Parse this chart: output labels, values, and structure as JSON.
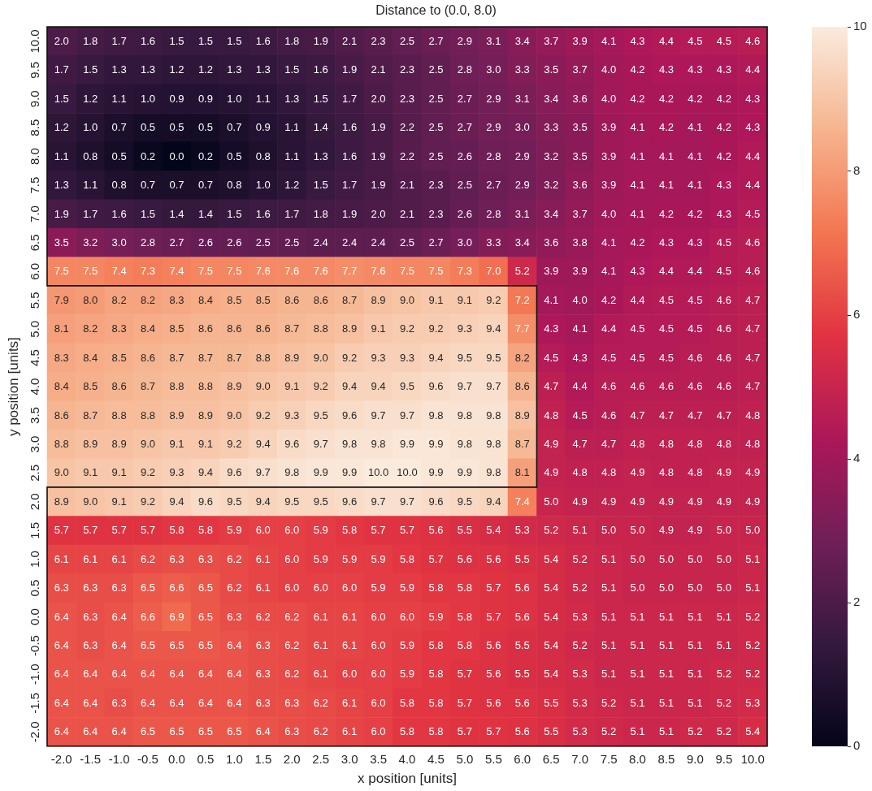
{
  "chart_data": {
    "type": "heatmap",
    "title": "Distance to (0.0, 8.0)",
    "xlabel": "x position [units]",
    "ylabel": "y position [units]",
    "categories": [
      "-2.0",
      "-1.5",
      "-1.0",
      "-0.5",
      "0.0",
      "0.5",
      "1.0",
      "1.5",
      "2.0",
      "2.5",
      "3.0",
      "3.5",
      "4.0",
      "4.5",
      "5.0",
      "5.5",
      "6.0",
      "6.5",
      "7.0",
      "7.5",
      "8.0",
      "8.5",
      "9.0",
      "9.5",
      "10.0"
    ],
    "y_categories": [
      "10.0",
      "9.5",
      "9.0",
      "8.5",
      "8.0",
      "7.5",
      "7.0",
      "6.5",
      "6.0",
      "5.5",
      "5.0",
      "4.5",
      "4.0",
      "3.5",
      "3.0",
      "2.5",
      "2.0",
      "1.5",
      "1.0",
      "0.5",
      "0.0",
      "-0.5",
      "-1.0",
      "-1.5",
      "-2.0"
    ],
    "cells": [
      [
        2.0,
        1.8,
        1.7,
        1.6,
        1.5,
        1.5,
        1.5,
        1.6,
        1.8,
        1.9,
        2.1,
        2.3,
        2.5,
        2.7,
        2.9,
        3.1,
        3.4,
        3.7,
        3.9,
        4.1,
        4.3,
        4.4,
        4.5,
        4.5,
        4.6
      ],
      [
        1.7,
        1.5,
        1.3,
        1.3,
        1.2,
        1.2,
        1.3,
        1.3,
        1.5,
        1.6,
        1.9,
        2.1,
        2.3,
        2.5,
        2.8,
        3.0,
        3.3,
        3.5,
        3.7,
        4.0,
        4.2,
        4.3,
        4.3,
        4.3,
        4.4
      ],
      [
        1.5,
        1.2,
        1.1,
        1.0,
        0.9,
        0.9,
        1.0,
        1.1,
        1.3,
        1.5,
        1.7,
        2.0,
        2.3,
        2.5,
        2.7,
        2.9,
        3.1,
        3.4,
        3.6,
        4.0,
        4.2,
        4.2,
        4.2,
        4.2,
        4.3
      ],
      [
        1.2,
        1.0,
        0.7,
        0.5,
        0.5,
        0.5,
        0.7,
        0.9,
        1.1,
        1.4,
        1.6,
        1.9,
        2.2,
        2.5,
        2.7,
        2.9,
        3.0,
        3.3,
        3.5,
        3.9,
        4.1,
        4.2,
        4.1,
        4.2,
        4.3
      ],
      [
        1.1,
        0.8,
        0.5,
        0.2,
        0.0,
        0.2,
        0.5,
        0.8,
        1.1,
        1.3,
        1.6,
        1.9,
        2.2,
        2.5,
        2.6,
        2.8,
        2.9,
        3.2,
        3.5,
        3.9,
        4.1,
        4.1,
        4.1,
        4.2,
        4.4
      ],
      [
        1.3,
        1.1,
        0.8,
        0.7,
        0.7,
        0.7,
        0.8,
        1.0,
        1.2,
        1.5,
        1.7,
        1.9,
        2.1,
        2.3,
        2.5,
        2.7,
        2.9,
        3.2,
        3.6,
        3.9,
        4.1,
        4.1,
        4.1,
        4.3,
        4.4
      ],
      [
        1.9,
        1.7,
        1.6,
        1.5,
        1.4,
        1.4,
        1.5,
        1.6,
        1.7,
        1.8,
        1.9,
        2.0,
        2.1,
        2.3,
        2.6,
        2.8,
        3.1,
        3.4,
        3.7,
        4.0,
        4.1,
        4.2,
        4.2,
        4.3,
        4.5
      ],
      [
        3.5,
        3.2,
        3.0,
        2.8,
        2.7,
        2.6,
        2.6,
        2.5,
        2.5,
        2.4,
        2.4,
        2.4,
        2.5,
        2.7,
        3.0,
        3.3,
        3.4,
        3.6,
        3.8,
        4.1,
        4.2,
        4.3,
        4.3,
        4.5,
        4.6
      ],
      [
        7.5,
        7.5,
        7.4,
        7.3,
        7.4,
        7.5,
        7.5,
        7.6,
        7.6,
        7.6,
        7.7,
        7.6,
        7.5,
        7.5,
        7.3,
        7.0,
        5.2,
        3.9,
        3.9,
        4.1,
        4.3,
        4.4,
        4.4,
        4.5,
        4.6
      ],
      [
        7.9,
        8.0,
        8.2,
        8.2,
        8.3,
        8.4,
        8.5,
        8.5,
        8.6,
        8.6,
        8.7,
        8.9,
        9.0,
        9.1,
        9.1,
        9.2,
        7.2,
        4.1,
        4.0,
        4.2,
        4.4,
        4.5,
        4.5,
        4.6,
        4.7
      ],
      [
        8.1,
        8.2,
        8.3,
        8.4,
        8.5,
        8.6,
        8.6,
        8.6,
        8.7,
        8.8,
        8.9,
        9.1,
        9.2,
        9.2,
        9.3,
        9.4,
        7.7,
        4.3,
        4.1,
        4.4,
        4.5,
        4.5,
        4.5,
        4.6,
        4.7
      ],
      [
        8.3,
        8.4,
        8.5,
        8.6,
        8.7,
        8.7,
        8.7,
        8.8,
        8.9,
        9.0,
        9.2,
        9.3,
        9.3,
        9.4,
        9.5,
        9.5,
        8.2,
        4.5,
        4.3,
        4.5,
        4.5,
        4.5,
        4.6,
        4.6,
        4.7
      ],
      [
        8.4,
        8.5,
        8.6,
        8.7,
        8.8,
        8.8,
        8.9,
        9.0,
        9.1,
        9.2,
        9.4,
        9.4,
        9.5,
        9.6,
        9.7,
        9.7,
        8.6,
        4.7,
        4.4,
        4.6,
        4.6,
        4.6,
        4.6,
        4.6,
        4.7
      ],
      [
        8.6,
        8.7,
        8.8,
        8.8,
        8.9,
        8.9,
        9.0,
        9.2,
        9.3,
        9.5,
        9.6,
        9.7,
        9.7,
        9.8,
        9.8,
        9.8,
        8.9,
        4.8,
        4.5,
        4.6,
        4.7,
        4.7,
        4.7,
        4.7,
        4.8
      ],
      [
        8.8,
        8.9,
        8.9,
        9.0,
        9.1,
        9.1,
        9.2,
        9.4,
        9.6,
        9.7,
        9.8,
        9.8,
        9.9,
        9.9,
        9.8,
        9.8,
        8.7,
        4.9,
        4.7,
        4.7,
        4.8,
        4.8,
        4.8,
        4.8,
        4.8
      ],
      [
        9.0,
        9.1,
        9.1,
        9.2,
        9.3,
        9.4,
        9.6,
        9.7,
        9.8,
        9.9,
        9.9,
        10.0,
        10.0,
        9.9,
        9.9,
        9.8,
        8.1,
        4.9,
        4.8,
        4.8,
        4.9,
        4.8,
        4.8,
        4.9,
        4.9
      ],
      [
        8.9,
        9.0,
        9.1,
        9.2,
        9.4,
        9.6,
        9.5,
        9.4,
        9.5,
        9.5,
        9.6,
        9.7,
        9.7,
        9.6,
        9.5,
        9.4,
        7.4,
        5.0,
        4.9,
        4.9,
        4.9,
        4.9,
        4.9,
        4.9,
        4.9
      ],
      [
        5.7,
        5.7,
        5.7,
        5.7,
        5.8,
        5.8,
        5.9,
        6.0,
        6.0,
        5.9,
        5.8,
        5.7,
        5.7,
        5.6,
        5.5,
        5.4,
        5.3,
        5.2,
        5.1,
        5.0,
        5.0,
        4.9,
        4.9,
        5.0,
        5.0
      ],
      [
        6.1,
        6.1,
        6.1,
        6.2,
        6.3,
        6.3,
        6.2,
        6.1,
        6.0,
        5.9,
        5.9,
        5.9,
        5.8,
        5.7,
        5.6,
        5.6,
        5.5,
        5.4,
        5.2,
        5.1,
        5.0,
        5.0,
        5.0,
        5.0,
        5.1
      ],
      [
        6.3,
        6.3,
        6.3,
        6.5,
        6.6,
        6.5,
        6.2,
        6.1,
        6.0,
        6.0,
        6.0,
        5.9,
        5.9,
        5.8,
        5.8,
        5.7,
        5.6,
        5.4,
        5.2,
        5.1,
        5.0,
        5.0,
        5.0,
        5.0,
        5.1
      ],
      [
        6.4,
        6.3,
        6.4,
        6.6,
        6.9,
        6.5,
        6.3,
        6.2,
        6.2,
        6.1,
        6.1,
        6.0,
        6.0,
        5.9,
        5.8,
        5.7,
        5.6,
        5.4,
        5.3,
        5.1,
        5.1,
        5.1,
        5.1,
        5.1,
        5.2
      ],
      [
        6.4,
        6.3,
        6.4,
        6.5,
        6.5,
        6.5,
        6.4,
        6.3,
        6.2,
        6.1,
        6.1,
        6.0,
        5.9,
        5.8,
        5.8,
        5.6,
        5.5,
        5.4,
        5.2,
        5.1,
        5.1,
        5.1,
        5.1,
        5.1,
        5.2
      ],
      [
        6.4,
        6.4,
        6.4,
        6.4,
        6.4,
        6.4,
        6.4,
        6.3,
        6.2,
        6.1,
        6.0,
        6.0,
        5.9,
        5.8,
        5.7,
        5.6,
        5.5,
        5.4,
        5.3,
        5.1,
        5.1,
        5.1,
        5.1,
        5.2,
        5.2
      ],
      [
        6.4,
        6.4,
        6.3,
        6.4,
        6.4,
        6.4,
        6.4,
        6.3,
        6.3,
        6.2,
        6.1,
        6.0,
        5.8,
        5.8,
        5.7,
        5.6,
        5.6,
        5.5,
        5.3,
        5.2,
        5.1,
        5.1,
        5.1,
        5.2,
        5.3
      ],
      [
        6.4,
        6.4,
        6.4,
        6.5,
        6.5,
        6.5,
        6.5,
        6.4,
        6.3,
        6.2,
        6.1,
        6.0,
        5.8,
        5.8,
        5.7,
        5.7,
        5.6,
        5.5,
        5.3,
        5.2,
        5.1,
        5.1,
        5.2,
        5.2,
        5.4
      ]
    ],
    "cell_labels": [
      [
        "2.0",
        "1.8",
        "1.7",
        "1.6",
        "1.5",
        "1.5",
        "1.5",
        "1.6",
        "1.8",
        "1.9",
        "2.1",
        "2.3",
        "2.5",
        "2.7",
        "2.9",
        "3.1",
        "3.4",
        "3.7",
        "3.9",
        "4.1",
        "4.3",
        "4.4",
        "4.5",
        "4.5",
        "4.6"
      ],
      [
        "1.7",
        "1.5",
        "1.3",
        "1.3",
        "1.2",
        "1.2",
        "1.3",
        "1.3",
        "1.5",
        "1.6",
        "1.9",
        "2.1",
        "2.3",
        "2.5",
        "2.8",
        "3.0",
        "3.3",
        "3.5",
        "3.7",
        "4.0",
        "4.2",
        "4.3",
        "4.3",
        "4.3",
        "4.4"
      ],
      [
        "1.5",
        "1.2",
        "1.1",
        "1.0",
        "0.9",
        "0.9",
        "1.0",
        "1.1",
        "1.3",
        "1.5",
        "1.7",
        "2.0",
        "2.3",
        "2.5",
        "2.7",
        "2.9",
        "3.1",
        "3.4",
        "3.6",
        "4.0",
        "4.2",
        "4.2",
        "4.2",
        "4.2",
        "4.3"
      ],
      [
        "1.2",
        "1.0",
        "0.7",
        "0.5",
        "0.5",
        "0.5",
        "0.7",
        "0.9",
        "1.1",
        "1.4",
        "1.6",
        "1.9",
        "2.2",
        "2.5",
        "2.7",
        "2.9",
        "3.0",
        "3.3",
        "3.5",
        "3.9",
        "4.1",
        "4.2",
        "4.1",
        "4.2",
        "4.3"
      ],
      [
        "1.1",
        "0.8",
        "0.5",
        "0.2",
        "0.0",
        "0.2",
        "0.5",
        "0.8",
        "1.1",
        "1.3",
        "1.6",
        "1.9",
        "2.2",
        "2.5",
        "2.6",
        "2.8",
        "2.9",
        "3.2",
        "3.5",
        "3.9",
        "4.1",
        "4.1",
        "4.1",
        "4.2",
        "4.4"
      ],
      [
        "1.3",
        "1.1",
        "0.8",
        "0.7",
        "0.7",
        "0.7",
        "0.8",
        "1.0",
        "1.2",
        "1.5",
        "1.7",
        "1.9",
        "2.1",
        "2.3",
        "2.5",
        "2.7",
        "2.9",
        "3.2",
        "3.6",
        "3.9",
        "4.1",
        "4.1",
        "4.1",
        "4.3",
        "4.4"
      ],
      [
        "1.9",
        "1.7",
        "1.6",
        "1.5",
        "1.4",
        "1.4",
        "1.5",
        "1.6",
        "1.7",
        "1.8",
        "1.9",
        "2.0",
        "2.1",
        "2.3",
        "2.6",
        "2.8",
        "3.1",
        "3.4",
        "3.7",
        "4.0",
        "4.1",
        "4.2",
        "4.2",
        "4.3",
        "4.5"
      ],
      [
        "3.5",
        "3.2",
        "3.0",
        "2.8",
        "2.7",
        "2.6",
        "2.6",
        "2.5",
        "2.5",
        "2.4",
        "2.4",
        "2.4",
        "2.5",
        "2.7",
        "3.0",
        "3.3",
        "3.4",
        "3.6",
        "3.8",
        "4.1",
        "4.2",
        "4.3",
        "4.3",
        "4.5",
        "4.6"
      ],
      [
        "7.5",
        "7.5",
        "7.4",
        "7.3",
        "7.4",
        "7.5",
        "7.5",
        "7.6",
        "7.6",
        "7.6",
        "7.7",
        "7.6",
        "7.5",
        "7.5",
        "7.3",
        "7.0",
        "5.2",
        "3.9",
        "3.9",
        "4.1",
        "4.3",
        "4.4",
        "4.4",
        "4.5",
        "4.6"
      ],
      [
        "7.9",
        "8.0",
        "8.2",
        "8.2",
        "8.3",
        "8.4",
        "8.5",
        "8.5",
        "8.6",
        "8.6",
        "8.7",
        "8.9",
        "9.0",
        "9.1",
        "9.1",
        "9.2",
        "7.2",
        "4.1",
        "4.0",
        "4.2",
        "4.4",
        "4.5",
        "4.5",
        "4.6",
        "4.7"
      ],
      [
        "8.1",
        "8.2",
        "8.3",
        "8.4",
        "8.5",
        "8.6",
        "8.6",
        "8.6",
        "8.7",
        "8.8",
        "8.9",
        "9.1",
        "9.2",
        "9.2",
        "9.3",
        "9.4",
        "7.7",
        "4.3",
        "4.1",
        "4.4",
        "4.5",
        "4.5",
        "4.5",
        "4.6",
        "4.7"
      ],
      [
        "8.3",
        "8.4",
        "8.5",
        "8.6",
        "8.7",
        "8.7",
        "8.7",
        "8.8",
        "8.9",
        "9.0",
        "9.2",
        "9.3",
        "9.3",
        "9.4",
        "9.5",
        "9.5",
        "8.2",
        "4.5",
        "4.3",
        "4.5",
        "4.5",
        "4.5",
        "4.6",
        "4.6",
        "4.7"
      ],
      [
        "8.4",
        "8.5",
        "8.6",
        "8.7",
        "8.8",
        "8.8",
        "8.9",
        "9.0",
        "9.1",
        "9.2",
        "9.4",
        "9.4",
        "9.5",
        "9.6",
        "9.7",
        "9.7",
        "8.6",
        "4.7",
        "4.4",
        "4.6",
        "4.6",
        "4.6",
        "4.6",
        "4.6",
        "4.7"
      ],
      [
        "8.6",
        "8.7",
        "8.8",
        "8.8",
        "8.9",
        "8.9",
        "9.0",
        "9.2",
        "9.3",
        "9.5",
        "9.6",
        "9.7",
        "9.7",
        "9.8",
        "9.8",
        "9.8",
        "8.9",
        "4.8",
        "4.5",
        "4.6",
        "4.7",
        "4.7",
        "4.7",
        "4.7",
        "4.8"
      ],
      [
        "8.8",
        "8.9",
        "8.9",
        "9.0",
        "9.1",
        "9.1",
        "9.2",
        "9.4",
        "9.6",
        "9.7",
        "9.8",
        "9.8",
        "9.9",
        "9.9",
        "9.8",
        "9.8",
        "8.7",
        "4.9",
        "4.7",
        "4.7",
        "4.8",
        "4.8",
        "4.8",
        "4.8",
        "4.8"
      ],
      [
        "9.0",
        "9.1",
        "9.1",
        "9.2",
        "9.3",
        "9.4",
        "9.6",
        "9.7",
        "9.8",
        "9.9",
        "9.9",
        "10.0",
        "10.0",
        "9.9",
        "9.9",
        "9.8",
        "8.1",
        "4.9",
        "4.8",
        "4.8",
        "4.9",
        "4.8",
        "4.8",
        "4.9",
        "4.9"
      ],
      [
        "8.9",
        "9.0",
        "9.1",
        "9.2",
        "9.4",
        "9.6",
        "9.5",
        "9.4",
        "9.5",
        "9.5",
        "9.6",
        "9.7",
        "9.7",
        "9.6",
        "9.5",
        "9.4",
        "7.4",
        "5.0",
        "4.9",
        "4.9",
        "4.9",
        "4.9",
        "4.9",
        "4.9",
        "4.9"
      ],
      [
        "5.7",
        "5.7",
        "5.7",
        "5.7",
        "5.8",
        "5.8",
        "5.9",
        "6.0",
        "6.0",
        "5.9",
        "5.8",
        "5.7",
        "5.7",
        "5.6",
        "5.5",
        "5.4",
        "5.3",
        "5.2",
        "5.1",
        "5.0",
        "5.0",
        "4.9",
        "4.9",
        "5.0",
        "5.0"
      ],
      [
        "6.1",
        "6.1",
        "6.1",
        "6.2",
        "6.3",
        "6.3",
        "6.2",
        "6.1",
        "6.0",
        "5.9",
        "5.9",
        "5.9",
        "5.8",
        "5.7",
        "5.6",
        "5.6",
        "5.5",
        "5.4",
        "5.2",
        "5.1",
        "5.0",
        "5.0",
        "5.0",
        "5.0",
        "5.1"
      ],
      [
        "6.3",
        "6.3",
        "6.3",
        "6.5",
        "6.6",
        "6.5",
        "6.2",
        "6.1",
        "6.0",
        "6.0",
        "6.0",
        "5.9",
        "5.9",
        "5.8",
        "5.8",
        "5.7",
        "5.6",
        "5.4",
        "5.2",
        "5.1",
        "5.0",
        "5.0",
        "5.0",
        "5.0",
        "5.1"
      ],
      [
        "6.4",
        "6.3",
        "6.4",
        "6.6",
        "6.9",
        "6.5",
        "6.3",
        "6.2",
        "6.2",
        "6.1",
        "6.1",
        "6.0",
        "6.0",
        "5.9",
        "5.8",
        "5.7",
        "5.6",
        "5.4",
        "5.3",
        "5.1",
        "5.1",
        "5.1",
        "5.1",
        "5.1",
        "5.2"
      ],
      [
        "6.4",
        "6.3",
        "6.4",
        "6.5",
        "6.5",
        "6.5",
        "6.4",
        "6.3",
        "6.2",
        "6.1",
        "6.1",
        "6.0",
        "5.9",
        "5.8",
        "5.8",
        "5.6",
        "5.5",
        "5.4",
        "5.2",
        "5.1",
        "5.1",
        "5.1",
        "5.1",
        "5.1",
        "5.2"
      ],
      [
        "6.4",
        "6.4",
        "6.4",
        "6.4",
        "6.4",
        "6.4",
        "6.4",
        "6.3",
        "6.2",
        "6.1",
        "6.0",
        "6.0",
        "5.9",
        "5.8",
        "5.7",
        "5.6",
        "5.5",
        "5.4",
        "5.3",
        "5.1",
        "5.1",
        "5.1",
        "5.1",
        "5.2",
        "5.2"
      ],
      [
        "6.4",
        "6.4",
        "6.3",
        "6.4",
        "6.4",
        "6.4",
        "6.4",
        "6.3",
        "6.3",
        "6.2",
        "6.1",
        "6.0",
        "5.8",
        "5.8",
        "5.7",
        "5.6",
        "5.6",
        "5.5",
        "5.3",
        "5.2",
        "5.1",
        "5.1",
        "5.1",
        "5.2",
        "5.3"
      ],
      [
        "6.4",
        "6.4",
        "6.4",
        "6.5",
        "6.5",
        "6.5",
        "6.5",
        "6.4",
        "6.3",
        "6.2",
        "6.1",
        "6.0",
        "5.8",
        "5.8",
        "5.7",
        "5.7",
        "5.6",
        "5.5",
        "5.3",
        "5.2",
        "5.1",
        "5.1",
        "5.2",
        "5.2",
        "5.4"
      ]
    ],
    "clim": [
      0,
      10
    ],
    "cticks": [
      0,
      2,
      4,
      6,
      8,
      10
    ]
  }
}
